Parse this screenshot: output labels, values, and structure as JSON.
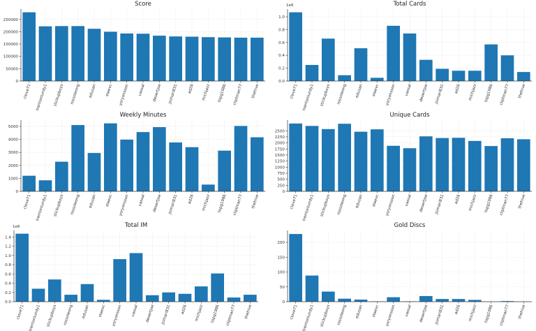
{
  "chart_data": [
    {
      "type": "bar",
      "title": "Score",
      "categories": [
        "clove71",
        "trentonlundy1",
        "stickupboys",
        "rossoleong",
        "edusan",
        "steevc",
        "yoryonsson",
        "vassal",
        "desertjoe",
        "jsimari831",
        "ad26",
        "michjazz",
        "topg1986",
        "cliptman77",
        "thehive"
      ],
      "values": [
        279000,
        222000,
        223000,
        223000,
        212000,
        200000,
        193000,
        192000,
        184000,
        181000,
        180000,
        178000,
        177000,
        176000,
        176000
      ],
      "yticks": [
        "0",
        "50000",
        "100000",
        "150000",
        "200000",
        "250000"
      ],
      "ytick_values": [
        0,
        50000,
        100000,
        150000,
        200000,
        250000
      ],
      "ylim": [
        0,
        292000
      ],
      "multiplier": "",
      "color": "#1f77b4"
    },
    {
      "type": "bar",
      "title": "Total Cards",
      "categories": [
        "clove71",
        "trentonlundy1",
        "stickupboys",
        "rossoleong",
        "edusan",
        "steevc",
        "yoryonsson",
        "vassal",
        "desertjoe",
        "jsimari831",
        "ad26",
        "michjazz",
        "topg1986",
        "cliptman77",
        "thehive"
      ],
      "values": [
        1.07,
        0.25,
        0.66,
        0.09,
        0.51,
        0.05,
        0.86,
        0.74,
        0.33,
        0.19,
        0.16,
        0.16,
        0.57,
        0.4,
        0.14
      ],
      "yticks": [
        "0.0",
        "0.2",
        "0.4",
        "0.6",
        "0.8",
        "1.0"
      ],
      "ytick_values": [
        0,
        0.2,
        0.4,
        0.6,
        0.8,
        1.0
      ],
      "ylim": [
        0,
        1.12
      ],
      "multiplier": "1e6",
      "color": "#1f77b4"
    },
    {
      "type": "bar",
      "title": "Weekly Minutes",
      "categories": [
        "clove71",
        "trentonlundy1",
        "stickupboys",
        "rossoleong",
        "edusan",
        "steevc",
        "yoryonsson",
        "vassal",
        "desertjoe",
        "jsimari831",
        "ad26",
        "michjazz",
        "topg1986",
        "cliptman77",
        "thehive"
      ],
      "values": [
        1200,
        850,
        2280,
        5100,
        2950,
        5230,
        3980,
        4560,
        4940,
        3760,
        3400,
        520,
        3130,
        5030,
        4160
      ],
      "yticks": [
        "0",
        "1000",
        "2000",
        "3000",
        "4000",
        "5000"
      ],
      "ytick_values": [
        0,
        1000,
        2000,
        3000,
        4000,
        5000
      ],
      "ylim": [
        0,
        5480
      ],
      "multiplier": "",
      "color": "#1f77b4"
    },
    {
      "type": "bar",
      "title": "Unique Cards",
      "categories": [
        "clove71",
        "trentonlundy1",
        "stickupboys",
        "rossoleong",
        "edusan",
        "steevc",
        "yoryonsson",
        "vassal",
        "desertjoe",
        "jsimari831",
        "ad26",
        "michjazz",
        "topg1986",
        "cliptman77",
        "thehive"
      ],
      "values": [
        2800,
        2700,
        2570,
        2790,
        2460,
        2560,
        1880,
        1780,
        2270,
        2200,
        2210,
        2080,
        1870,
        2190,
        2150
      ],
      "yticks": [
        "0",
        "250",
        "500",
        "750",
        "1000",
        "1250",
        "1500",
        "1750",
        "2000",
        "2250",
        "2500"
      ],
      "ytick_values": [
        0,
        250,
        500,
        750,
        1000,
        1250,
        1500,
        1750,
        2000,
        2250,
        2500
      ],
      "ylim": [
        0,
        2940
      ],
      "multiplier": "",
      "color": "#1f77b4"
    },
    {
      "type": "bar",
      "title": "Total IM",
      "categories": [
        "clove71",
        "trentonlundy1",
        "stickupboys",
        "rossoleong",
        "edusan",
        "steevc",
        "yoryonsson",
        "vassal",
        "desertjoe",
        "jsimari831",
        "ad26",
        "michjazz",
        "topg1986",
        "cliptman77",
        "thehive"
      ],
      "values": [
        1.47,
        0.28,
        0.48,
        0.15,
        0.38,
        0.04,
        0.92,
        1.05,
        0.14,
        0.2,
        0.17,
        0.33,
        0.61,
        0.09,
        0.15
      ],
      "yticks": [
        "0.0",
        "0.2",
        "0.4",
        "0.6",
        "0.8",
        "1.0",
        "1.2",
        "1.4"
      ],
      "ytick_values": [
        0,
        0.2,
        0.4,
        0.6,
        0.8,
        1.0,
        1.2,
        1.4
      ],
      "ylim": [
        0,
        1.54
      ],
      "multiplier": "1e6",
      "color": "#1f77b4"
    },
    {
      "type": "bar",
      "title": "Gold Discs",
      "categories": [
        "clove71",
        "trentonlundy1",
        "stickupboys",
        "rossoleong",
        "edusan",
        "steevc",
        "yoryonsson",
        "vassal",
        "desertjoe",
        "jsimari831",
        "ad26",
        "michjazz",
        "topg1986",
        "cliptman77",
        "thehive"
      ],
      "values": [
        228,
        88,
        34,
        10,
        7,
        1,
        15,
        1,
        19,
        9,
        9,
        6,
        0,
        2,
        0
      ],
      "yticks": [
        "0",
        "50",
        "100",
        "150",
        "200"
      ],
      "ytick_values": [
        0,
        50,
        100,
        150,
        200
      ],
      "ylim": [
        0,
        240
      ],
      "multiplier": "",
      "color": "#1f77b4"
    }
  ]
}
